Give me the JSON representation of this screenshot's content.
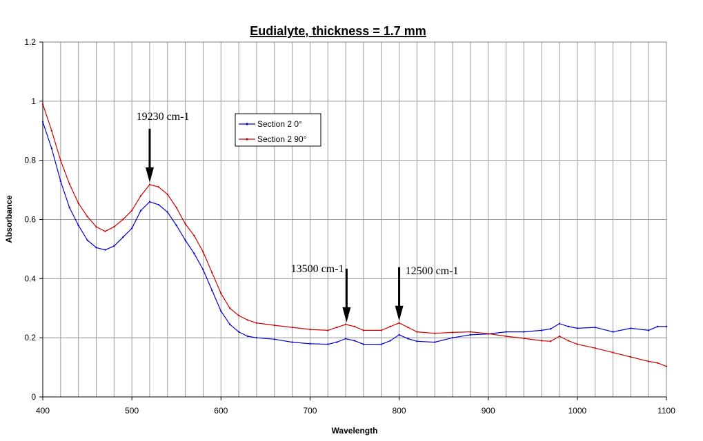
{
  "chart_data": {
    "type": "line",
    "title": "Eudialyte, thickness = 1.7 mm",
    "xlabel": "Wavelength",
    "ylabel": "Absorbance",
    "xlim": [
      400,
      1100
    ],
    "ylim": [
      0,
      1.2
    ],
    "xticks": [
      "400",
      "500",
      "600",
      "700",
      "800",
      "900",
      "1000",
      "1100"
    ],
    "yticks": [
      "0",
      "0.2",
      "0.4",
      "0.6",
      "0.8",
      "1",
      "1.2"
    ],
    "grid": true,
    "legend_position": "upper-center",
    "series": [
      {
        "name": "Section 2 0°",
        "color": "#0000cc",
        "points": [
          [
            400,
            0.93
          ],
          [
            410,
            0.84
          ],
          [
            420,
            0.73
          ],
          [
            430,
            0.64
          ],
          [
            440,
            0.58
          ],
          [
            450,
            0.53
          ],
          [
            460,
            0.505
          ],
          [
            470,
            0.497
          ],
          [
            480,
            0.51
          ],
          [
            490,
            0.54
          ],
          [
            500,
            0.57
          ],
          [
            510,
            0.63
          ],
          [
            520,
            0.66
          ],
          [
            530,
            0.65
          ],
          [
            540,
            0.625
          ],
          [
            550,
            0.58
          ],
          [
            560,
            0.53
          ],
          [
            570,
            0.485
          ],
          [
            580,
            0.43
          ],
          [
            590,
            0.36
          ],
          [
            600,
            0.29
          ],
          [
            610,
            0.245
          ],
          [
            620,
            0.22
          ],
          [
            630,
            0.205
          ],
          [
            640,
            0.2
          ],
          [
            660,
            0.195
          ],
          [
            680,
            0.185
          ],
          [
            700,
            0.18
          ],
          [
            720,
            0.178
          ],
          [
            730,
            0.185
          ],
          [
            740,
            0.197
          ],
          [
            750,
            0.19
          ],
          [
            760,
            0.178
          ],
          [
            780,
            0.178
          ],
          [
            790,
            0.19
          ],
          [
            800,
            0.21
          ],
          [
            810,
            0.197
          ],
          [
            820,
            0.188
          ],
          [
            840,
            0.185
          ],
          [
            860,
            0.2
          ],
          [
            880,
            0.21
          ],
          [
            900,
            0.213
          ],
          [
            920,
            0.22
          ],
          [
            940,
            0.22
          ],
          [
            960,
            0.225
          ],
          [
            970,
            0.23
          ],
          [
            980,
            0.248
          ],
          [
            990,
            0.238
          ],
          [
            1000,
            0.232
          ],
          [
            1020,
            0.235
          ],
          [
            1040,
            0.22
          ],
          [
            1060,
            0.232
          ],
          [
            1080,
            0.225
          ],
          [
            1090,
            0.238
          ],
          [
            1100,
            0.238
          ]
        ]
      },
      {
        "name": "Section 2 90°",
        "color": "#cc0000",
        "points": [
          [
            400,
            0.99
          ],
          [
            410,
            0.9
          ],
          [
            420,
            0.8
          ],
          [
            430,
            0.72
          ],
          [
            440,
            0.655
          ],
          [
            450,
            0.61
          ],
          [
            460,
            0.575
          ],
          [
            470,
            0.56
          ],
          [
            480,
            0.575
          ],
          [
            490,
            0.6
          ],
          [
            500,
            0.63
          ],
          [
            510,
            0.68
          ],
          [
            520,
            0.718
          ],
          [
            530,
            0.71
          ],
          [
            540,
            0.685
          ],
          [
            550,
            0.64
          ],
          [
            560,
            0.585
          ],
          [
            570,
            0.545
          ],
          [
            580,
            0.49
          ],
          [
            590,
            0.42
          ],
          [
            600,
            0.35
          ],
          [
            610,
            0.3
          ],
          [
            620,
            0.275
          ],
          [
            630,
            0.26
          ],
          [
            640,
            0.25
          ],
          [
            660,
            0.242
          ],
          [
            680,
            0.235
          ],
          [
            700,
            0.228
          ],
          [
            720,
            0.225
          ],
          [
            730,
            0.235
          ],
          [
            740,
            0.245
          ],
          [
            750,
            0.238
          ],
          [
            760,
            0.225
          ],
          [
            780,
            0.225
          ],
          [
            790,
            0.238
          ],
          [
            800,
            0.25
          ],
          [
            810,
            0.235
          ],
          [
            820,
            0.22
          ],
          [
            840,
            0.215
          ],
          [
            860,
            0.218
          ],
          [
            880,
            0.22
          ],
          [
            900,
            0.214
          ],
          [
            920,
            0.205
          ],
          [
            940,
            0.198
          ],
          [
            960,
            0.19
          ],
          [
            970,
            0.188
          ],
          [
            980,
            0.205
          ],
          [
            990,
            0.19
          ],
          [
            1000,
            0.178
          ],
          [
            1020,
            0.165
          ],
          [
            1040,
            0.15
          ],
          [
            1060,
            0.135
          ],
          [
            1080,
            0.12
          ],
          [
            1090,
            0.115
          ],
          [
            1100,
            0.103
          ]
        ]
      }
    ],
    "annotations": [
      {
        "text": "19230 cm-1",
        "x": 520,
        "y": 0.718
      },
      {
        "text": "13500 cm-1",
        "x": 741,
        "y": 0.245
      },
      {
        "text": "12500 cm-1",
        "x": 800,
        "y": 0.25
      }
    ]
  }
}
